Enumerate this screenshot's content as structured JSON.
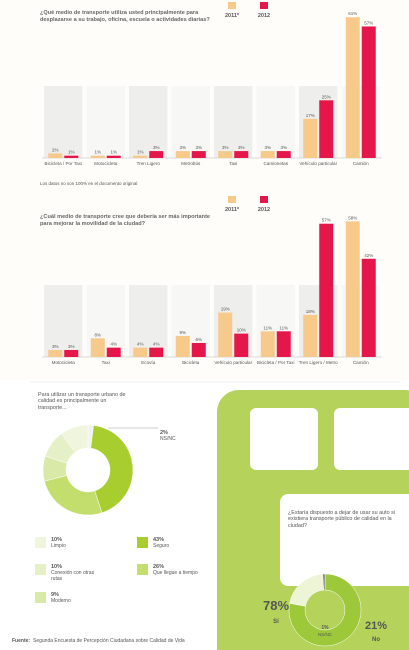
{
  "source_label": "Fuente:",
  "source": "Segunda Encuesta de Percepción Ciudadana sobre Calidad de Vida",
  "chart_data": [
    {
      "type": "bar",
      "title": "¿Qué medio de transporte utiliza usted principalmente para desplazarse a su trabajo, oficina, escuela o actividades diarias?",
      "note": "Los datos no son 100% en el documento original",
      "categories": [
        "Bicicleta / Por Taxi",
        "Motocicleta",
        "Tren Ligero",
        "Metrobús",
        "Taxi",
        "Camionetas",
        "Vehículo particular",
        "Camión"
      ],
      "series": [
        {
          "name": "2011*",
          "color": "#f7c98a",
          "values": [
            2,
            1,
            1,
            3,
            3,
            3,
            17,
            61
          ],
          "value_labels": [
            "2%",
            "1%",
            "1%",
            "3%",
            "3%",
            "3%",
            "17%",
            "61%"
          ]
        },
        {
          "name": "2012",
          "color": "#e5174a",
          "values": [
            1,
            1,
            3,
            3,
            3,
            3,
            25,
            57
          ],
          "value_labels": [
            "1%",
            "1%",
            "3%",
            "3%",
            "3%",
            "3%",
            "25%",
            "57%"
          ]
        }
      ],
      "ylim": [
        0,
        65
      ]
    },
    {
      "type": "bar",
      "title": "¿Cuál medio de transporte cree que debería ser más importante para mejorar la movilidad de la ciudad?",
      "categories": [
        "Motocicleta",
        "Taxi",
        "Ecovía",
        "Bicicleta",
        "Vehículo particular",
        "Bicicleta / Por Taxi",
        "Tren Ligero / Metro",
        "Camión"
      ],
      "series": [
        {
          "name": "2011*",
          "color": "#f7c98a",
          "values": [
            3,
            8,
            4,
            9,
            19,
            11,
            18,
            58
          ],
          "value_labels": [
            "3%",
            "8%",
            "4%",
            "9%",
            "19%",
            "11%",
            "18%",
            "58%"
          ]
        },
        {
          "name": "2012",
          "color": "#e5174a",
          "values": [
            3,
            4,
            4,
            6,
            10,
            11,
            57,
            42
          ],
          "value_labels": [
            "3%",
            "4%",
            "4%",
            "6%",
            "10%",
            "11%",
            "57%",
            "42%"
          ]
        }
      ],
      "ylim": [
        0,
        65
      ]
    },
    {
      "type": "pie",
      "title": "Para utilizar un transporte urbano de calidad es principalmente un transporte...",
      "categories": [
        "NS/NC",
        "Seguro",
        "Que llegue a tiempo",
        "Moderno",
        "Conexión con otras rutas",
        "Limpio"
      ],
      "values": [
        2,
        43,
        26,
        9,
        10,
        10
      ],
      "value_labels": [
        "2%",
        "43%",
        "26%",
        "9%",
        "10%",
        "10%"
      ],
      "colors": [
        "#f2f2ee",
        "#a8cd2f",
        "#c4de6e",
        "#d9e9a8",
        "#e6f0c6",
        "#f0f6de"
      ]
    },
    {
      "type": "pie",
      "title": "¿Estaría dispuesto a dejar de usar su auto si existiera transporte público de calidad en la ciudad?",
      "categories": [
        "Sí",
        "No",
        "NS/NC"
      ],
      "values": [
        78,
        21,
        1
      ],
      "value_labels": [
        "78%",
        "21%",
        "1%"
      ],
      "colors": [
        "#9cc83a",
        "#eef4d6",
        "#777777"
      ]
    }
  ]
}
